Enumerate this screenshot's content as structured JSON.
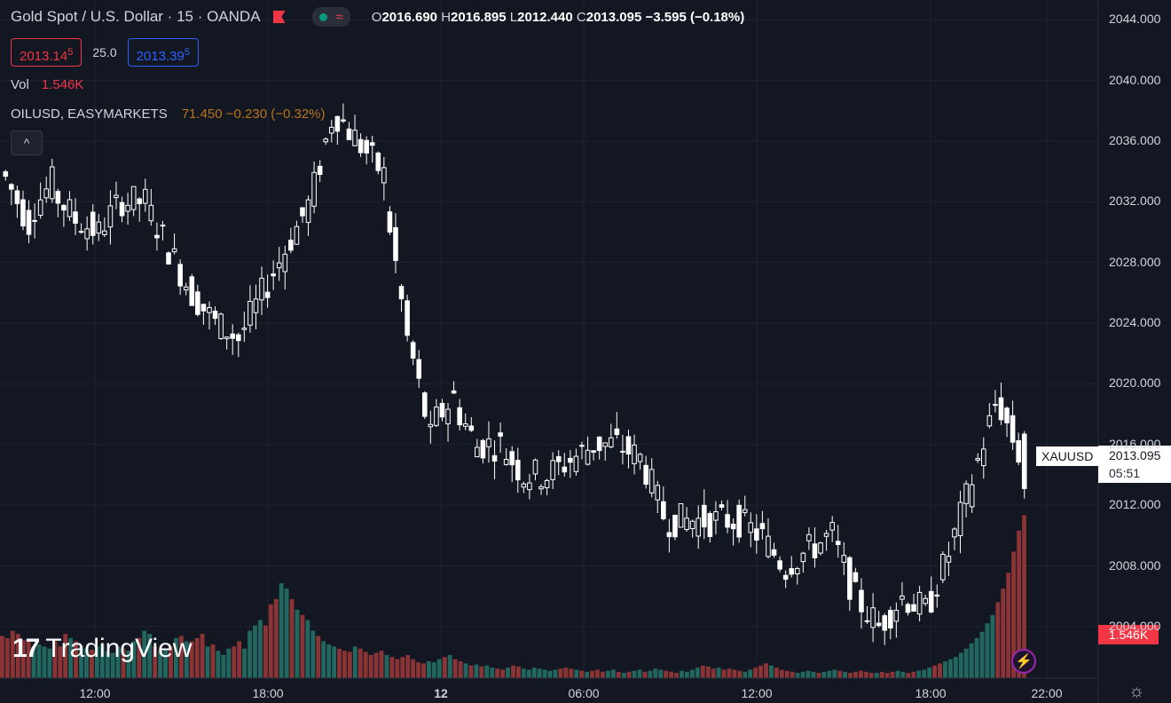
{
  "header": {
    "title": "Gold Spot / U.S. Dollar · 15 · OANDA",
    "status_wave": "≈",
    "ohlc": {
      "o_label": "O",
      "o": "2016.690",
      "h_label": "H",
      "h": "2016.895",
      "l_label": "L",
      "l": "2012.440",
      "c_label": "C",
      "c": "2013.095",
      "change": "−3.595 (−0.18%)"
    }
  },
  "quote": {
    "bid": "2013.14",
    "bid_small": "5",
    "spread": "25.0",
    "ask": "2013.39",
    "ask_small": "5"
  },
  "volume_legend": {
    "label": "Vol",
    "value": "1.546K"
  },
  "compare_legend": {
    "label": "OILUSD, EASYMARKETS",
    "value": "71.450 −0.230 (−0.32%)"
  },
  "collapse_glyph": "^",
  "logo": {
    "mark": "17",
    "text": "TradingView"
  },
  "price_tag": {
    "symbol": "XAUUSD",
    "price": "2013.095",
    "countdown": "05:51"
  },
  "volume_tag": "1.546K",
  "colors": {
    "up": "#089981",
    "down": "#f23645",
    "candle": "#ffffff",
    "bg": "#131722",
    "grid": "#1f2331",
    "vol_up": "#22675f",
    "vol_down": "#8a3436"
  },
  "icons": {
    "live": "lightning-icon",
    "settings": "gear-icon"
  },
  "chart_data": {
    "type": "candlestick",
    "y_axis": {
      "ticks": [
        "2044.000",
        "2040.000",
        "2036.000",
        "2032.000",
        "2028.000",
        "2024.000",
        "2020.000",
        "2016.000",
        "2012.000",
        "2008.000",
        "2004.000"
      ],
      "range": [
        2000.6,
        2045.3
      ]
    },
    "x_axis": {
      "ticks": [
        {
          "label": "12:00",
          "bold": false
        },
        {
          "label": "18:00",
          "bold": false
        },
        {
          "label": "12",
          "bold": true
        },
        {
          "label": "06:00",
          "bold": false
        },
        {
          "label": "12:00",
          "bold": false
        },
        {
          "label": "18:00",
          "bold": false
        },
        {
          "label": "22:00",
          "bold": false
        }
      ]
    },
    "anchors": [
      [
        2034,
        33,
        2032
      ],
      [
        2031,
        34,
        2030
      ],
      [
        2033,
        35,
        2032
      ],
      [
        2031,
        33,
        2031
      ],
      [
        2030,
        33,
        2030
      ],
      [
        2032,
        34,
        2032
      ],
      [
        2032,
        34,
        2031
      ],
      [
        2029,
        29,
        2028
      ],
      [
        2026,
        27,
        2024
      ],
      [
        2024,
        28,
        2023
      ],
      [
        2023,
        24,
        2022
      ],
      [
        2026,
        26,
        2025
      ],
      [
        2029,
        30,
        2029
      ],
      [
        2032,
        35,
        2038
      ],
      [
        2038,
        39,
        2037
      ],
      [
        2036,
        38,
        2034
      ],
      [
        2034,
        35,
        2029
      ],
      [
        2024,
        25,
        2013
      ],
      [
        2017,
        18,
        2019
      ],
      [
        2019,
        22,
        2017
      ],
      [
        2016,
        16,
        2015
      ],
      [
        2016,
        17,
        2014
      ],
      [
        2014,
        15,
        2014
      ],
      [
        2014,
        17,
        2015
      ],
      [
        2015,
        17,
        2015
      ],
      [
        2016,
        17,
        2016
      ],
      [
        2016,
        17,
        2015
      ],
      [
        2015,
        16,
        2012
      ],
      [
        2011,
        12,
        2011
      ],
      [
        2011,
        12,
        2010
      ],
      [
        2011,
        12,
        2010
      ],
      [
        2011,
        12,
        2010
      ],
      [
        2010,
        11,
        2009
      ],
      [
        2008,
        10,
        2007
      ],
      [
        2009,
        11,
        2008
      ],
      [
        2010,
        11,
        2009
      ],
      [
        2006,
        8,
        2004
      ],
      [
        2004,
        7,
        2006
      ],
      [
        2006,
        9,
        2006
      ],
      [
        2005,
        8,
        2005
      ],
      [
        2009,
        12,
        2012
      ],
      [
        2014,
        22,
        2018
      ],
      [
        2019,
        22,
        2016
      ],
      [
        2015,
        16,
        2013
      ]
    ],
    "volume": {
      "max": 1.6,
      "values": [
        0.4,
        0.38,
        0.45,
        0.42,
        0.36,
        0.35,
        0.3,
        0.32,
        0.3,
        0.28,
        0.35,
        0.3,
        0.42,
        0.38,
        0.35,
        0.3,
        0.28,
        0.27,
        0.3,
        0.32,
        0.26,
        0.24,
        0.3,
        0.28,
        0.26,
        0.35,
        0.38,
        0.45,
        0.42,
        0.3,
        0.26,
        0.28,
        0.3,
        0.38,
        0.4,
        0.35,
        0.35,
        0.38,
        0.42,
        0.3,
        0.32,
        0.26,
        0.22,
        0.28,
        0.3,
        0.35,
        0.28,
        0.45,
        0.5,
        0.55,
        0.5,
        0.7,
        0.75,
        0.9,
        0.85,
        0.75,
        0.65,
        0.6,
        0.55,
        0.45,
        0.4,
        0.35,
        0.32,
        0.3,
        0.28,
        0.26,
        0.25,
        0.3,
        0.28,
        0.25,
        0.22,
        0.24,
        0.26,
        0.22,
        0.2,
        0.18,
        0.2,
        0.22,
        0.18,
        0.15,
        0.14,
        0.16,
        0.15,
        0.18,
        0.2,
        0.22,
        0.18,
        0.16,
        0.14,
        0.12,
        0.13,
        0.11,
        0.12,
        0.1,
        0.09,
        0.08,
        0.1,
        0.12,
        0.11,
        0.09,
        0.08,
        0.1,
        0.09,
        0.08,
        0.07,
        0.08,
        0.09,
        0.1,
        0.09,
        0.08,
        0.07,
        0.06,
        0.07,
        0.08,
        0.06,
        0.07,
        0.08,
        0.06,
        0.05,
        0.06,
        0.07,
        0.08,
        0.06,
        0.07,
        0.09,
        0.08,
        0.07,
        0.06,
        0.05,
        0.07,
        0.06,
        0.08,
        0.1,
        0.12,
        0.11,
        0.09,
        0.1,
        0.08,
        0.09,
        0.08,
        0.07,
        0.06,
        0.08,
        0.1,
        0.12,
        0.14,
        0.12,
        0.1,
        0.08,
        0.07,
        0.06,
        0.05,
        0.06,
        0.07,
        0.06,
        0.05,
        0.06,
        0.07,
        0.08,
        0.07,
        0.06,
        0.05,
        0.06,
        0.07,
        0.06,
        0.05,
        0.05,
        0.06,
        0.05,
        0.06,
        0.07,
        0.06,
        0.05,
        0.06,
        0.07,
        0.08,
        0.1,
        0.12,
        0.14,
        0.16,
        0.18,
        0.2,
        0.24,
        0.28,
        0.33,
        0.38,
        0.44,
        0.52,
        0.6,
        0.72,
        0.85,
        1.0,
        1.2,
        1.4,
        1.546
      ],
      "colors": "mixed"
    }
  }
}
